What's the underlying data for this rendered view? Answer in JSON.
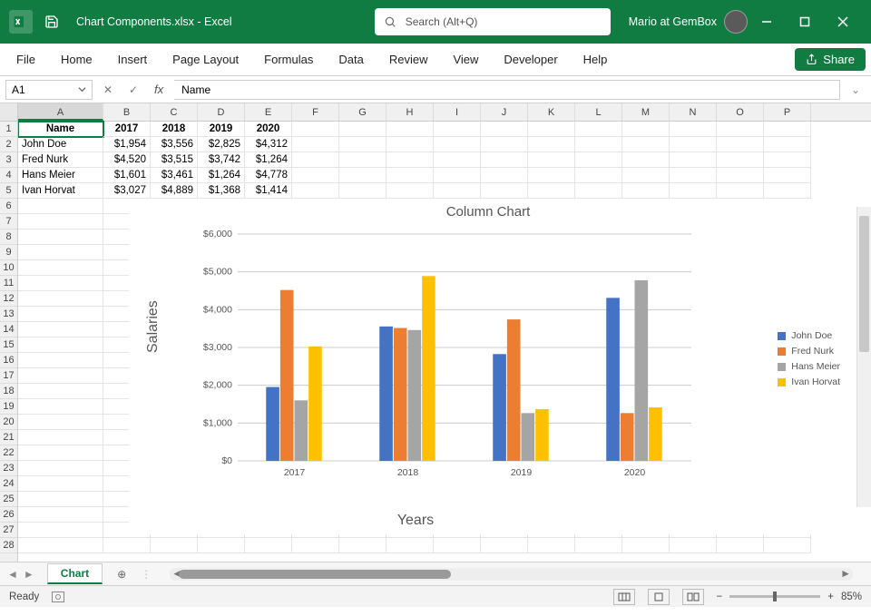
{
  "app": {
    "doc_title": "Chart Components.xlsx  -  Excel",
    "search_placeholder": "Search (Alt+Q)",
    "user_name": "Mario at GemBox"
  },
  "ribbon": {
    "tabs": [
      "File",
      "Home",
      "Insert",
      "Page Layout",
      "Formulas",
      "Data",
      "Review",
      "View",
      "Developer",
      "Help"
    ],
    "share_label": "Share"
  },
  "formula": {
    "name_box": "A1",
    "fx_value": "Name"
  },
  "grid": {
    "columns": [
      "A",
      "B",
      "C",
      "D",
      "E",
      "F",
      "G",
      "H",
      "I",
      "J",
      "K",
      "L",
      "M",
      "N",
      "O",
      "P"
    ],
    "row_count": 28,
    "header_row": [
      "Name",
      "2017",
      "2018",
      "2019",
      "2020"
    ],
    "data_rows": [
      [
        "John Doe",
        "$1,954",
        "$3,556",
        "$2,825",
        "$4,312"
      ],
      [
        "Fred Nurk",
        "$4,520",
        "$3,515",
        "$3,742",
        "$1,264"
      ],
      [
        "Hans Meier",
        "$1,601",
        "$3,461",
        "$1,264",
        "$4,778"
      ],
      [
        "Ivan Horvat",
        "$3,027",
        "$4,889",
        "$1,368",
        "$1,414"
      ]
    ],
    "selected": "A1"
  },
  "chart": {
    "type": "bar",
    "title": "Column Chart",
    "x_title": "Years",
    "y_title": "Salaries",
    "categories": [
      "2017",
      "2018",
      "2019",
      "2020"
    ],
    "series": [
      {
        "name": "John Doe",
        "color": "#4472c4",
        "values": [
          1954,
          3556,
          2825,
          4312
        ]
      },
      {
        "name": "Fred Nurk",
        "color": "#ed7d31",
        "values": [
          4520,
          3515,
          3742,
          1264
        ]
      },
      {
        "name": "Hans Meier",
        "color": "#a5a5a5",
        "values": [
          1601,
          3461,
          1264,
          4778
        ]
      },
      {
        "name": "Ivan Horvat",
        "color": "#ffc000",
        "values": [
          3027,
          4889,
          1368,
          1414
        ]
      }
    ],
    "ylim": [
      0,
      6000
    ],
    "ytick_step": 1000,
    "ytick_prefix": "$",
    "grid_color": "#cccccc",
    "background": "#ffffff",
    "title_fontsize": 15,
    "axis_title_fontsize": 16,
    "tick_fontsize": 10.5,
    "legend_fontsize": 10.5,
    "bar_group_gap": 0.5,
    "bar_gap": 0.0
  },
  "sheet_tabs": {
    "active": "Chart"
  },
  "status": {
    "ready": "Ready",
    "zoom": "85%"
  }
}
